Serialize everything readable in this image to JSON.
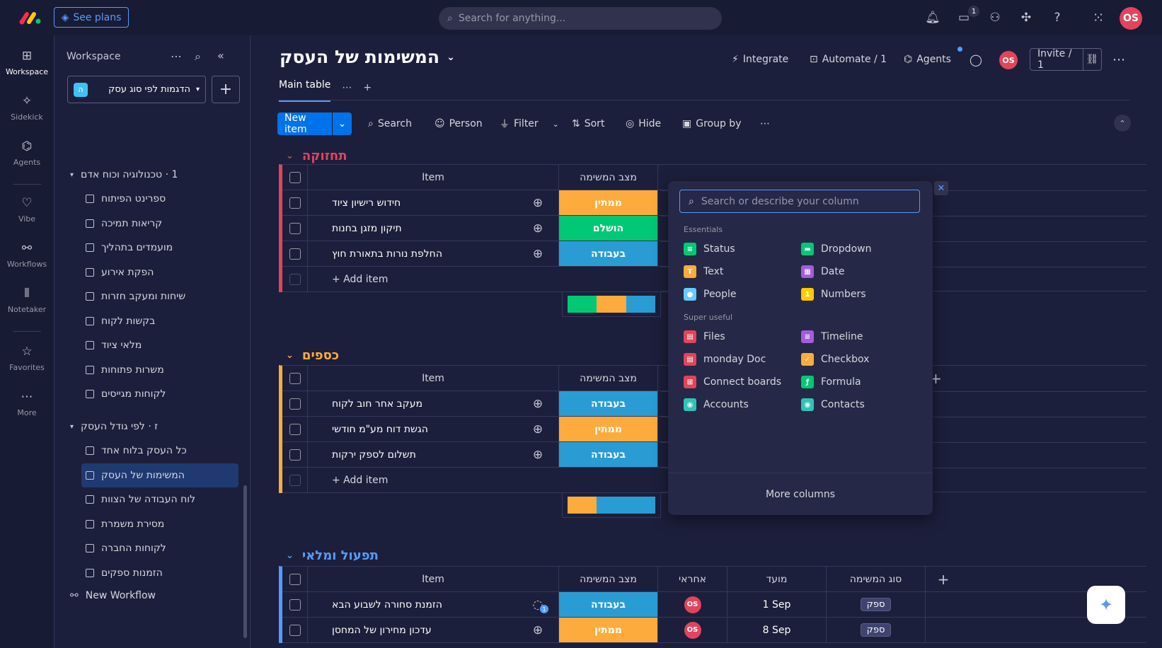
{
  "topbar": {
    "see_plans": "See plans",
    "search_placeholder": "Search for anything...",
    "inbox_badge": "1",
    "avatar": "OS"
  },
  "rail": [
    {
      "label": "Workspace",
      "icon": "grid-icon"
    },
    {
      "label": "Sidekick",
      "icon": "sparkle-icon"
    },
    {
      "label": "Agents",
      "icon": "agents-icon"
    },
    {
      "label": "Vibe",
      "icon": "heart-icon"
    },
    {
      "label": "Workflows",
      "icon": "workflows-icon"
    },
    {
      "label": "Notetaker",
      "icon": "waveform-icon"
    },
    {
      "label": "Favorites",
      "icon": "star-icon"
    },
    {
      "label": "More",
      "icon": "more-icon"
    }
  ],
  "sidebar": {
    "title": "Workspace",
    "workspace_name": "הדגמות לפי סוג עסק",
    "workspace_badge": "ה",
    "folder1": "1 · טכנולוגיה וכוח אדם",
    "items1": [
      "ספרינט הפיתוח",
      "קריאות תמיכה",
      "מועמדים בתהליך",
      "הפקת אירוע",
      "שיחות ומעקב חזרות",
      "בקשות לקוח",
      "מלאי ציוד",
      "משרות פתוחות",
      "לקוחות מגייסים"
    ],
    "folder2": "ז · לפי גודל העסק",
    "items2": [
      "כל העסק בלוח אחד",
      "המשימות של העסק",
      "לוח העבודה של הצוות",
      "מסירת משמרת",
      "לקוחות החברה",
      "הזמנות ספקים"
    ],
    "new_workflow": "New Workflow"
  },
  "board": {
    "title": "המשימות של העסק",
    "integrate": "Integrate",
    "automate": "Automate / 1",
    "agents": "Agents",
    "avatar": "OS",
    "invite": "Invite / 1",
    "tab_main": "Main table"
  },
  "toolbar": {
    "new_item": "New item",
    "search": "Search",
    "person": "Person",
    "filter": "Filter",
    "sort": "Sort",
    "hide": "Hide",
    "group_by": "Group by"
  },
  "columns": {
    "item": "Item",
    "status": "מצב המשימה",
    "owner": "אחראי",
    "due": "מועד",
    "type": "סוג המשימה"
  },
  "add_item": "+ Add item",
  "colors": {
    "orange": "#fdab3d",
    "green": "#00c875",
    "blue": "#2a9cd4",
    "pink": "#e2445c",
    "group1": "#e2445c",
    "group2": "#fdab3d",
    "group3": "#579bfc"
  },
  "groups": [
    {
      "title": "תחזוקה",
      "rows": [
        {
          "name": "חידוש רישיון ציוד",
          "status": "ממתין",
          "color": "#fdab3d"
        },
        {
          "name": "תיקון מזגן בחנות",
          "status": "הושלם",
          "color": "#00c875"
        },
        {
          "name": "החלפת נורות בתאורת חוץ",
          "status": "בעבודה",
          "color": "#2a9cd4"
        }
      ]
    },
    {
      "title": "כספים",
      "rows": [
        {
          "name": "מעקב אחר חוב לקוח",
          "status": "בעבודה",
          "color": "#2a9cd4"
        },
        {
          "name": "הגשת דוח מע\"מ חודשי",
          "status": "ממתין",
          "color": "#fdab3d"
        },
        {
          "name": "תשלום לספק ירקות",
          "status": "בעבודה",
          "color": "#2a9cd4"
        }
      ]
    },
    {
      "title": "תפעול ומלאי",
      "rows": [
        {
          "name": "הזמנת סחורה לשבוע הבא",
          "status": "בעבודה",
          "color": "#2a9cd4",
          "owner": "OS",
          "due": "1 Sep",
          "type": "ספק",
          "updates": "1"
        },
        {
          "name": "עדכון מחירון של המחסן",
          "status": "ממתין",
          "color": "#fdab3d",
          "owner": "OS",
          "due": "8 Sep",
          "type": "ספק"
        }
      ]
    }
  ],
  "popup": {
    "search_placeholder": "Search or describe your column",
    "essentials": "Essentials",
    "essential_items": [
      {
        "label": "Status",
        "color": "#00c875",
        "glyph": "≡"
      },
      {
        "label": "Dropdown",
        "color": "#00c875",
        "glyph": "▬"
      },
      {
        "label": "Text",
        "color": "#fdab3d",
        "glyph": "T"
      },
      {
        "label": "Date",
        "color": "#a25ddc",
        "glyph": "▦"
      },
      {
        "label": "People",
        "color": "#66ccff",
        "glyph": "●"
      },
      {
        "label": "Numbers",
        "color": "#ffcb00",
        "glyph": "1"
      }
    ],
    "super_useful": "Super useful",
    "useful_items": [
      {
        "label": "Files",
        "color": "#e2445c",
        "glyph": "▤"
      },
      {
        "label": "Timeline",
        "color": "#a25ddc",
        "glyph": "≡"
      },
      {
        "label": "monday Doc",
        "color": "#e2445c",
        "glyph": "▤"
      },
      {
        "label": "Checkbox",
        "color": "#fdab3d",
        "glyph": "✓"
      },
      {
        "label": "Connect boards",
        "color": "#e2445c",
        "glyph": "⊞"
      },
      {
        "label": "Formula",
        "color": "#00c875",
        "glyph": "ƒ"
      },
      {
        "label": "Accounts",
        "color": "#2ec4b6",
        "glyph": "◉"
      },
      {
        "label": "Contacts",
        "color": "#2ec4b6",
        "glyph": "◉"
      }
    ],
    "more_columns": "More columns"
  }
}
